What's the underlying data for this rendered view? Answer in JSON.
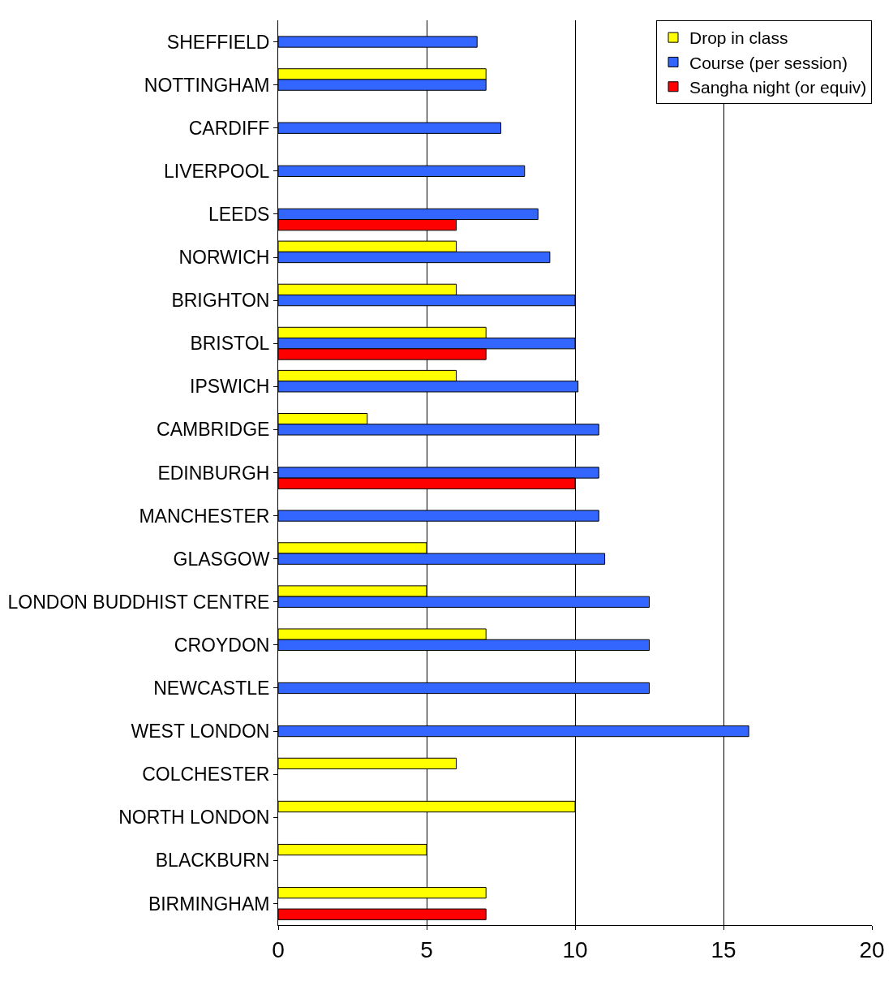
{
  "chart_data": {
    "type": "bar",
    "orientation": "horizontal",
    "categories": [
      "SHEFFIELD",
      "NOTTINGHAM",
      "CARDIFF",
      "LIVERPOOL",
      "LEEDS",
      "NORWICH",
      "BRIGHTON",
      "BRISTOL",
      "IPSWICH",
      "CAMBRIDGE",
      "EDINBURGH",
      "MANCHESTER",
      "GLASGOW",
      "LONDON BUDDHIST CENTRE",
      "CROYDON",
      "NEWCASTLE",
      "WEST LONDON",
      "COLCHESTER",
      "NORTH LONDON",
      "BLACKBURN",
      "BIRMINGHAM"
    ],
    "series": [
      {
        "name": "Drop in class",
        "color": "#ffff00",
        "values": [
          null,
          7,
          null,
          null,
          null,
          6,
          6,
          7,
          6,
          3,
          null,
          null,
          5,
          5,
          7,
          null,
          null,
          6,
          10,
          5,
          7
        ]
      },
      {
        "name": "Course (per session)",
        "color": "#3366ff",
        "values": [
          6.7,
          7,
          7.5,
          8.3,
          8.75,
          9.15,
          10,
          10,
          10.1,
          10.8,
          10.8,
          10.8,
          11,
          12.5,
          12.5,
          12.5,
          15.85,
          null,
          null,
          null,
          null
        ]
      },
      {
        "name": "Sangha night (or equiv)",
        "color": "#ff0000",
        "values": [
          null,
          null,
          null,
          null,
          6,
          null,
          null,
          7,
          null,
          null,
          10,
          null,
          null,
          null,
          null,
          null,
          null,
          null,
          null,
          null,
          7
        ]
      }
    ],
    "xlim": [
      0,
      20
    ],
    "xticks": [
      0,
      5,
      10,
      15,
      20
    ],
    "grid": "x",
    "legend": "top right"
  }
}
